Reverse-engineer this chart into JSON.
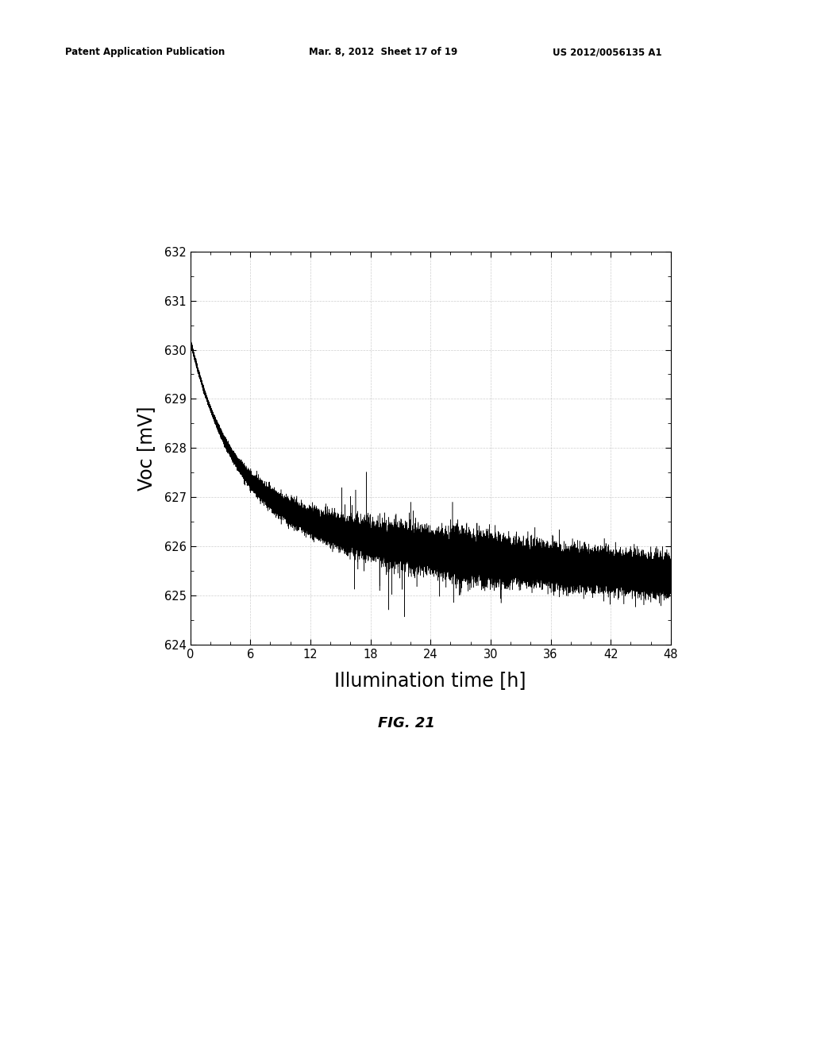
{
  "fig_label": "FIG. 21",
  "xlabel": "Illumination time [h]",
  "ylabel": "Voc [mV]",
  "xlim": [
    0,
    48
  ],
  "ylim": [
    624,
    632
  ],
  "xticks": [
    0,
    6,
    12,
    18,
    24,
    30,
    36,
    42,
    48
  ],
  "yticks": [
    624,
    625,
    626,
    627,
    628,
    629,
    630,
    631,
    632
  ],
  "line_color": "#000000",
  "background_color": "#ffffff",
  "grid_color": "#b0b0b0",
  "header_left": "Patent Application Publication",
  "header_mid": "Mar. 8, 2012  Sheet 17 of 19",
  "header_right": "US 2012/0056135 A1"
}
